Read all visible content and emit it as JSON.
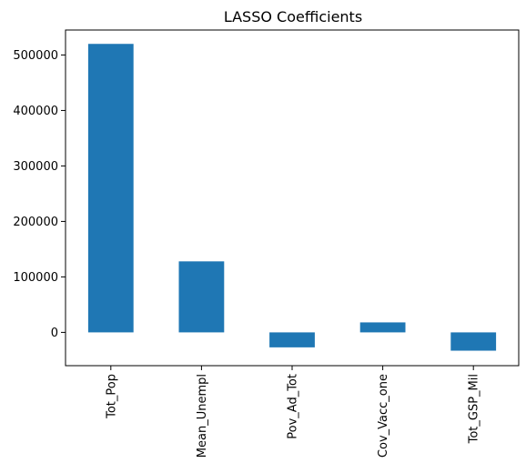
{
  "chart_data": {
    "type": "bar",
    "title": "LASSO Coefficients",
    "xlabel": "",
    "ylabel": "",
    "categories": [
      "Tot_Pop",
      "Mean_Unempl",
      "Pov_Ad_Tot",
      "Cov_Vacc_one",
      "Tot_GSP_Mil"
    ],
    "values": [
      520000,
      128000,
      -27000,
      18000,
      -33000
    ],
    "ylim": [
      -60000,
      545000
    ],
    "yticks": [
      0,
      100000,
      200000,
      300000,
      400000,
      500000
    ],
    "ytick_labels": [
      "0",
      "100000",
      "200000",
      "300000",
      "400000",
      "500000"
    ],
    "grid": false,
    "legend": "none",
    "bar_color": "#1f77b4"
  }
}
